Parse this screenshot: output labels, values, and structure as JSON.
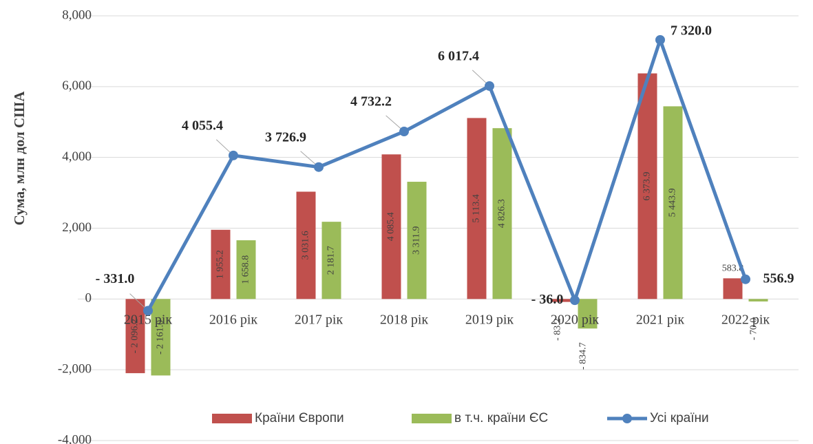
{
  "chart_data": {
    "type": "bar_line",
    "y_label": "Сума, млн дол США",
    "categories": [
      "2015 рік",
      "2016 рік",
      "2017 рік",
      "2018 рік",
      "2019 рік",
      "2020 рік",
      "2021 рік",
      "2022 рік"
    ],
    "series": [
      {
        "name": "Країни Європи",
        "type": "bar",
        "color": "#c0504d",
        "values": [
          -2096.2,
          1955.2,
          3031.6,
          4085.4,
          5113.4,
          -83.2,
          6373.9,
          583.8
        ],
        "value_labels": [
          "- 2 096.2",
          "1 955.2",
          "3 031.6",
          "4 085.4",
          "5 113.4",
          "- 83.2",
          "6 373.9",
          "583.8"
        ]
      },
      {
        "name": "в т.ч. країни ЄС",
        "type": "bar",
        "color": "#9bbb59",
        "values": [
          -2161.0,
          1658.8,
          2181.7,
          3311.9,
          4826.3,
          -834.7,
          5443.9,
          -70.0
        ],
        "value_labels": [
          "- 2 161.0",
          "1 658.8",
          "2 181.7",
          "3 311.9",
          "4 826.3",
          "- 834.7",
          "5 443.9",
          "- 70.0"
        ]
      },
      {
        "name": "Усі країни",
        "type": "line",
        "color": "#4f81bd",
        "values": [
          -331.0,
          4055.4,
          3726.9,
          4732.2,
          6017.4,
          -36.0,
          7320.0,
          556.9
        ],
        "value_labels": [
          "- 331.0",
          "4 055.4",
          "3 726.9",
          "4 732.2",
          "6 017.4",
          "- 36.0",
          "7 320.0",
          "556.9"
        ]
      }
    ],
    "ylim": [
      -4000,
      8000
    ],
    "yticks": [
      {
        "value": -4000,
        "label": "-4,000"
      },
      {
        "value": -2000,
        "label": "-2,000"
      },
      0,
      {
        "value": 2000,
        "label": "2,000"
      },
      {
        "value": 4000,
        "label": "4,000"
      },
      {
        "value": 6000,
        "label": "6,000"
      },
      {
        "value": 8000,
        "label": "8,000"
      }
    ],
    "grid": true,
    "legend": "bottom"
  }
}
